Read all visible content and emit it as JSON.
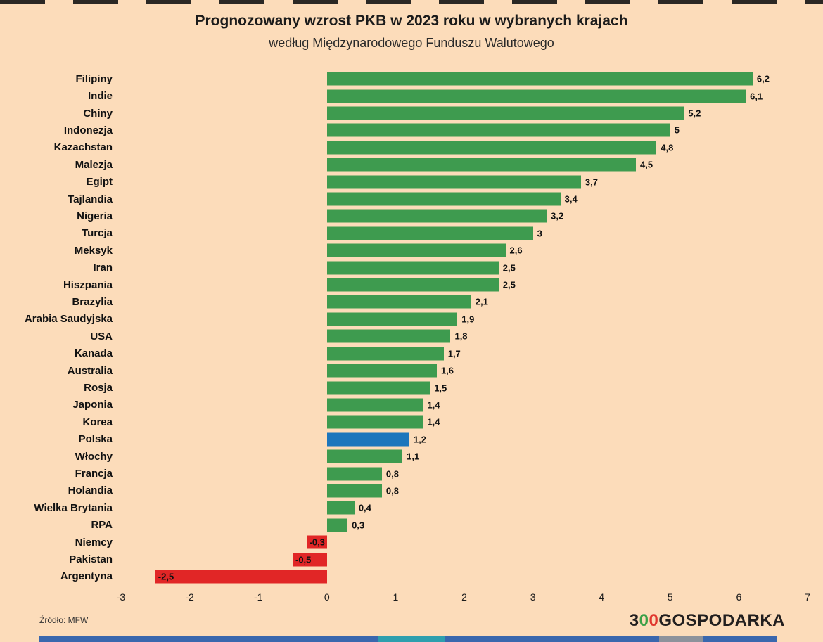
{
  "page": {
    "background_color": "#fcdcba"
  },
  "chart_data": {
    "type": "bar",
    "orientation": "horizontal",
    "title": "Prognozowany wzrost PKB w 2023 roku w wybranych krajach",
    "subtitle": "według Międzynarodowego Funduszu Walutowego",
    "xlim": [
      -3,
      7
    ],
    "xticks": [
      -3,
      -2,
      -1,
      0,
      1,
      2,
      3,
      4,
      5,
      6,
      7
    ],
    "grid": false,
    "legend": false,
    "colors": {
      "positive": "#3e9b4f",
      "negative": "#e12626",
      "highlight": "#1d76bc"
    },
    "bars": [
      {
        "category": "Filipiny",
        "value": 6.2,
        "label": "6,2",
        "color": "positive"
      },
      {
        "category": "Indie",
        "value": 6.1,
        "label": "6,1",
        "color": "positive"
      },
      {
        "category": "Chiny",
        "value": 5.2,
        "label": "5,2",
        "color": "positive"
      },
      {
        "category": "Indonezja",
        "value": 5,
        "label": "5",
        "color": "positive"
      },
      {
        "category": "Kazachstan",
        "value": 4.8,
        "label": "4,8",
        "color": "positive"
      },
      {
        "category": "Malezja",
        "value": 4.5,
        "label": "4,5",
        "color": "positive"
      },
      {
        "category": "Egipt",
        "value": 3.7,
        "label": "3,7",
        "color": "positive"
      },
      {
        "category": "Tajlandia",
        "value": 3.4,
        "label": "3,4",
        "color": "positive"
      },
      {
        "category": "Nigeria",
        "value": 3.2,
        "label": "3,2",
        "color": "positive"
      },
      {
        "category": "Turcja",
        "value": 3,
        "label": "3",
        "color": "positive"
      },
      {
        "category": "Meksyk",
        "value": 2.6,
        "label": "2,6",
        "color": "positive"
      },
      {
        "category": "Iran",
        "value": 2.5,
        "label": "2,5",
        "color": "positive"
      },
      {
        "category": "Hiszpania",
        "value": 2.5,
        "label": "2,5",
        "color": "positive"
      },
      {
        "category": "Brazylia",
        "value": 2.1,
        "label": "2,1",
        "color": "positive"
      },
      {
        "category": "Arabia Saudyjska",
        "value": 1.9,
        "label": "1,9",
        "color": "positive"
      },
      {
        "category": "USA",
        "value": 1.8,
        "label": "1,8",
        "color": "positive"
      },
      {
        "category": "Kanada",
        "value": 1.7,
        "label": "1,7",
        "color": "positive"
      },
      {
        "category": "Australia",
        "value": 1.6,
        "label": "1,6",
        "color": "positive"
      },
      {
        "category": "Rosja",
        "value": 1.5,
        "label": "1,5",
        "color": "positive"
      },
      {
        "category": "Japonia",
        "value": 1.4,
        "label": "1,4",
        "color": "positive"
      },
      {
        "category": "Korea",
        "value": 1.4,
        "label": "1,4",
        "color": "positive"
      },
      {
        "category": "Polska",
        "value": 1.2,
        "label": "1,2",
        "color": "highlight"
      },
      {
        "category": "Włochy",
        "value": 1.1,
        "label": "1,1",
        "color": "positive"
      },
      {
        "category": "Francja",
        "value": 0.8,
        "label": "0,8",
        "color": "positive"
      },
      {
        "category": "Holandia",
        "value": 0.8,
        "label": "0,8",
        "color": "positive"
      },
      {
        "category": "Wielka Brytania",
        "value": 0.4,
        "label": "0,4",
        "color": "positive"
      },
      {
        "category": "RPA",
        "value": 0.3,
        "label": "0,3",
        "color": "positive"
      },
      {
        "category": "Niemcy",
        "value": -0.3,
        "label": "-0,3",
        "color": "negative"
      },
      {
        "category": "Pakistan",
        "value": -0.5,
        "label": "-0,5",
        "color": "negative"
      },
      {
        "category": "Argentyna",
        "value": -2.5,
        "label": "-2,5",
        "color": "negative"
      }
    ]
  },
  "footer": {
    "source": "Źródło: MFW",
    "logo": {
      "part1": "3",
      "zero1": "0",
      "zero2": "0",
      "part2": "GOSPODARKA",
      "zero1_color": "#3aa047",
      "zero2_color": "#e0372e"
    }
  }
}
